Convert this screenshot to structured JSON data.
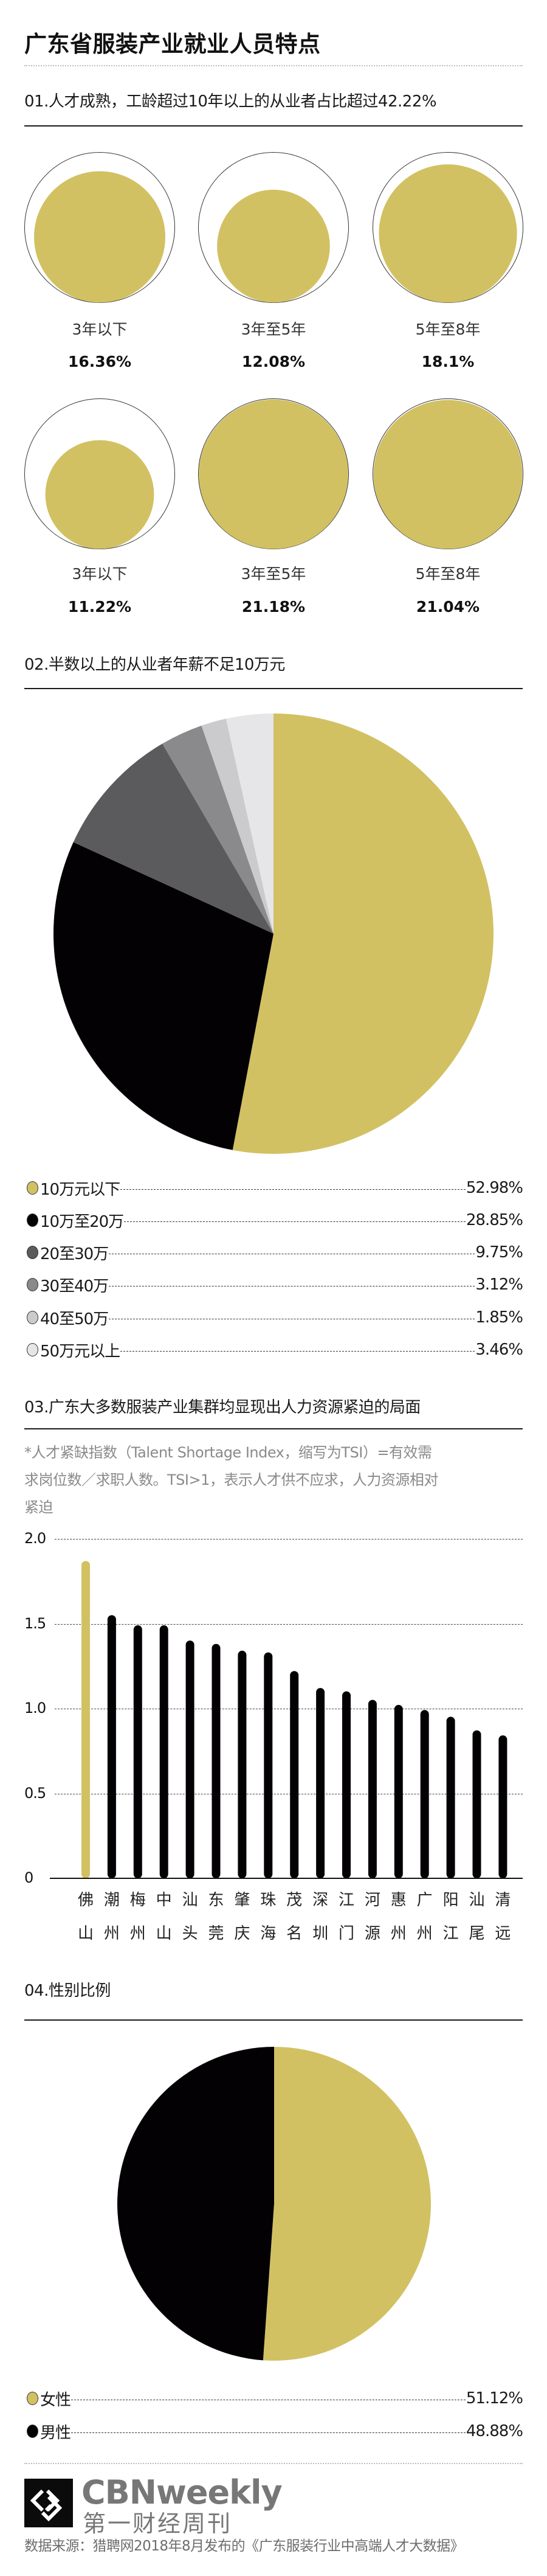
{
  "page": {
    "title": "广东省服装产业就业人员特点"
  },
  "colors": {
    "gold": "#D2C163",
    "black": "#030104",
    "dark_gray": "#5B5A5C",
    "mid_gray": "#8A898B",
    "light_gray": "#CBCACC",
    "lighter_gray": "#E6E5E7"
  },
  "section1": {
    "title": "01.人才成熟，工龄超过10年以上的从业者占比超过42.22%",
    "circles": [
      {
        "label": "3年以下",
        "value": "16.36%"
      },
      {
        "label": "3年至5年",
        "value": "12.08%"
      },
      {
        "label": "5年至8年",
        "value": "18.1%"
      },
      {
        "label": "3年以下",
        "value": "11.22%"
      },
      {
        "label": "3年至5年",
        "value": "21.18%"
      },
      {
        "label": "5年至8年",
        "value": "21.04%"
      }
    ]
  },
  "section2": {
    "title": "02.半数以上的从业者年薪不足10万元",
    "legend": [
      {
        "label": "10万元以下",
        "value": "52.98%"
      },
      {
        "label": "10万至20万",
        "value": "28.85%"
      },
      {
        "label": "20至30万",
        "value": "9.75%"
      },
      {
        "label": "30至40万",
        "value": "3.12%"
      },
      {
        "label": "40至50万",
        "value": "1.85%"
      },
      {
        "label": "50万元以上",
        "value": "3.46%"
      }
    ]
  },
  "section3": {
    "title": "03.广东大多数服装产业集群均显现出人力资源紧迫的局面",
    "note_lines": [
      "*人才紧缺指数（Talent Shortage Index，缩写为TSI）=有效需",
      "求岗位数／求职人数。TSI>1，表示人才供不应求，人力资源相对",
      "紧迫"
    ],
    "yticks": [
      "2.0",
      "1.5",
      "1.0",
      "0.5",
      "0"
    ],
    "cities": [
      {
        "top": "佛",
        "bottom": "山"
      },
      {
        "top": "潮",
        "bottom": "州"
      },
      {
        "top": "梅",
        "bottom": "州"
      },
      {
        "top": "中",
        "bottom": "山"
      },
      {
        "top": "汕",
        "bottom": "头"
      },
      {
        "top": "东",
        "bottom": "莞"
      },
      {
        "top": "肇",
        "bottom": "庆"
      },
      {
        "top": "珠",
        "bottom": "海"
      },
      {
        "top": "茂",
        "bottom": "名"
      },
      {
        "top": "深",
        "bottom": "圳"
      },
      {
        "top": "江",
        "bottom": "门"
      },
      {
        "top": "河",
        "bottom": "源"
      },
      {
        "top": "惠",
        "bottom": "州"
      },
      {
        "top": "广",
        "bottom": "州"
      },
      {
        "top": "阳",
        "bottom": "江"
      },
      {
        "top": "汕",
        "bottom": "尾"
      },
      {
        "top": "清",
        "bottom": "远"
      }
    ]
  },
  "section4": {
    "title": "04.性别比例",
    "legend": [
      {
        "label": "女性",
        "value": "51.12%"
      },
      {
        "label": "男性",
        "value": "48.88%"
      }
    ]
  },
  "footer": {
    "brand_en": "CBNweekly",
    "brand_cn": "第一财经周刊",
    "source": "数据来源：猎聘网2018年8月发布的《广东服装行业中高端人才大数据》"
  },
  "chart_data": [
    {
      "type": "bubble",
      "title": "01.人才成熟，工龄超过10年以上的从业者占比超过42.22%",
      "categories": [
        "3年以下",
        "3年至5年",
        "5年至8年",
        "3年以下",
        "3年至5年",
        "5年至8年"
      ],
      "values": [
        16.36,
        12.08,
        18.1,
        11.22,
        21.18,
        21.04
      ],
      "unit": "%"
    },
    {
      "type": "pie",
      "title": "02.半数以上的从业者年薪不足10万元",
      "categories": [
        "10万元以下",
        "10万至20万",
        "20至30万",
        "30至40万",
        "40至50万",
        "50万元以上"
      ],
      "values": [
        52.98,
        28.85,
        9.75,
        3.12,
        1.85,
        3.46
      ],
      "colors": [
        "#D2C163",
        "#030104",
        "#5B5A5C",
        "#8A898B",
        "#CBCACC",
        "#E6E5E7"
      ],
      "unit": "%",
      "legend_position": "bottom"
    },
    {
      "type": "bar",
      "title": "03.广东大多数服装产业集群均显现出人力资源紧迫的局面",
      "xlabel": "",
      "ylabel": "人才紧缺指数（TSI）",
      "categories": [
        "佛山",
        "潮州",
        "梅州",
        "中山",
        "汕头",
        "东莞",
        "肇庆",
        "珠海",
        "茂名",
        "深圳",
        "江门",
        "河源",
        "惠州",
        "广州",
        "阳江",
        "汕尾",
        "清远"
      ],
      "values": [
        1.87,
        1.55,
        1.49,
        1.49,
        1.4,
        1.38,
        1.34,
        1.33,
        1.22,
        1.12,
        1.1,
        1.05,
        1.02,
        0.99,
        0.95,
        0.87,
        0.84
      ],
      "highlight": "佛山",
      "ylim": [
        0,
        2.0
      ],
      "yticks": [
        0,
        0.5,
        1.0,
        1.5,
        2.0
      ],
      "grid": true
    },
    {
      "type": "pie",
      "title": "04.性别比例",
      "categories": [
        "女性",
        "男性"
      ],
      "values": [
        51.12,
        48.88
      ],
      "colors": [
        "#D2C163",
        "#030104"
      ],
      "unit": "%",
      "legend_position": "bottom"
    }
  ]
}
